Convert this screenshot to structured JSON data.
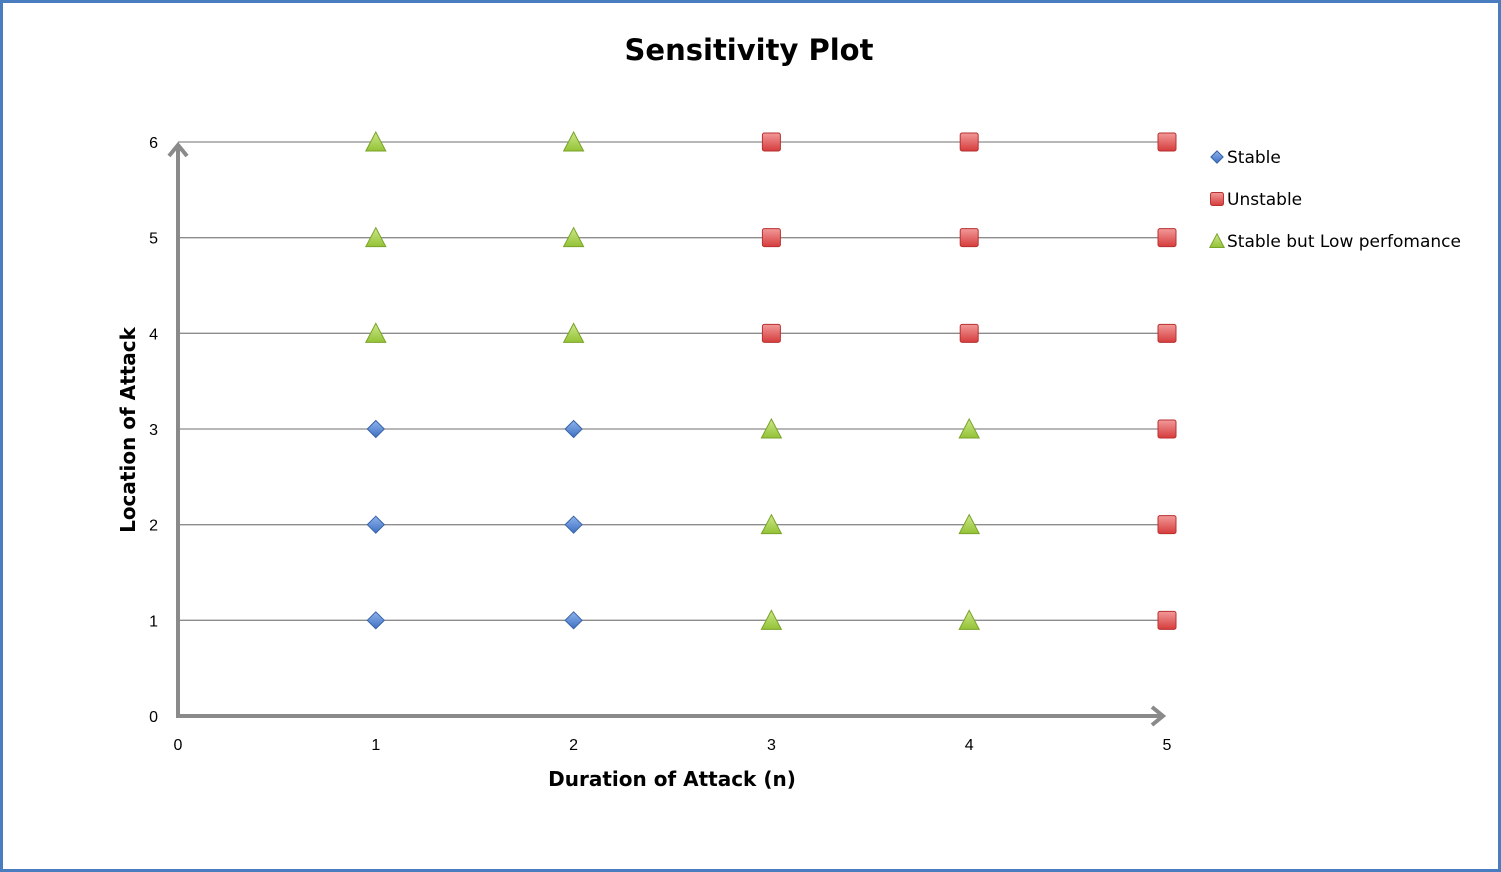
{
  "chart_data": {
    "type": "scatter",
    "title": "Sensitivity Plot",
    "xlabel": "Duration of Attack (n)",
    "ylabel": "Location of Attack",
    "xlim": [
      0,
      5
    ],
    "ylim": [
      0,
      6
    ],
    "xticks": [
      "0",
      "1",
      "2",
      "3",
      "4",
      "5"
    ],
    "yticks": [
      "0",
      "1",
      "2",
      "3",
      "4",
      "5",
      "6"
    ],
    "grid": "horizontal",
    "legend_position": "right",
    "series": [
      {
        "name": "Stable",
        "marker": "diamond",
        "color": "#4f81d0",
        "points": [
          [
            1,
            1
          ],
          [
            2,
            1
          ],
          [
            1,
            2
          ],
          [
            2,
            2
          ],
          [
            1,
            3
          ],
          [
            2,
            3
          ]
        ]
      },
      {
        "name": "Unstable",
        "marker": "square",
        "color": "#e04848",
        "points": [
          [
            5,
            1
          ],
          [
            5,
            2
          ],
          [
            5,
            3
          ],
          [
            3,
            4
          ],
          [
            4,
            4
          ],
          [
            5,
            4
          ],
          [
            3,
            5
          ],
          [
            4,
            5
          ],
          [
            5,
            5
          ],
          [
            3,
            6
          ],
          [
            4,
            6
          ],
          [
            5,
            6
          ]
        ]
      },
      {
        "name": "Stable but Low perfomance",
        "marker": "triangle",
        "color": "#9bc83c",
        "points": [
          [
            3,
            1
          ],
          [
            4,
            1
          ],
          [
            3,
            2
          ],
          [
            4,
            2
          ],
          [
            3,
            3
          ],
          [
            4,
            3
          ],
          [
            1,
            4
          ],
          [
            2,
            4
          ],
          [
            1,
            5
          ],
          [
            2,
            5
          ],
          [
            1,
            6
          ],
          [
            2,
            6
          ]
        ]
      }
    ]
  }
}
